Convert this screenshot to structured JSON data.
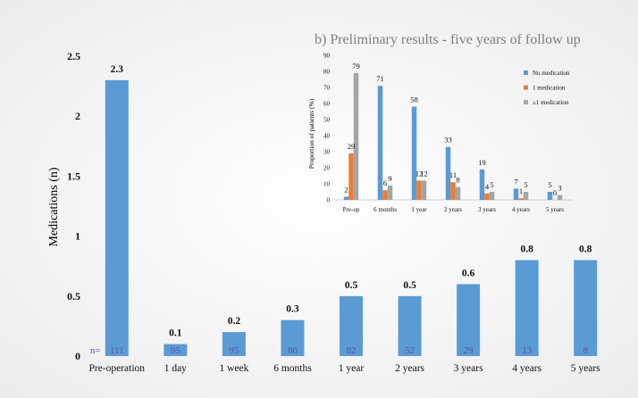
{
  "colors": {
    "background": "#f4f4f4",
    "bar_blue": "#5b9bd5",
    "bar_orange": "#ed7d31",
    "bar_gray": "#a5a5a5",
    "n_label": "#5a4fb0",
    "text": "#111111",
    "inset_title": "#7f7f7f"
  },
  "chart_data": [
    {
      "type": "bar",
      "title": "",
      "xlabel": "",
      "ylabel": "Medications (n)",
      "ylim": [
        0,
        2.5
      ],
      "yticks": [
        "0",
        "0.5",
        "1",
        "1.5",
        "2",
        "2.5"
      ],
      "ytick_values": [
        0,
        0.5,
        1,
        1.5,
        2,
        2.5
      ],
      "grid": false,
      "categories": [
        "Pre-operation",
        "1 day",
        "1 week",
        "6 months",
        "1 year",
        "2 years",
        "3 years",
        "4 years",
        "5 years"
      ],
      "values": [
        2.3,
        0.1,
        0.2,
        0.3,
        0.5,
        0.5,
        0.6,
        0.8,
        0.8
      ],
      "value_labels": [
        "2.3",
        "0.1",
        "0.2",
        "0.3",
        "0.5",
        "0.5",
        "0.6",
        "0.8",
        "0.8"
      ],
      "n_prefix": "n=",
      "n_values": [
        "111",
        "95",
        "95",
        "86",
        "82",
        "52",
        "29",
        "13",
        "8"
      ]
    },
    {
      "type": "bar",
      "title": "b) Preliminary results - five years of follow up",
      "xlabel": "",
      "ylabel": "Proportion of patients (%)",
      "ylim": [
        0,
        90
      ],
      "yticks": [
        "0",
        "10",
        "20",
        "30",
        "40",
        "50",
        "60",
        "70",
        "80",
        "90"
      ],
      "ytick_values": [
        0,
        10,
        20,
        30,
        40,
        50,
        60,
        70,
        80,
        90
      ],
      "grid": false,
      "legend": "right",
      "categories": [
        "Pre-op",
        "6 months",
        "1 year",
        "2 years",
        "3 years",
        "4 years",
        "5 years"
      ],
      "series": [
        {
          "name": "No medication",
          "values": [
            2,
            71,
            58,
            33,
            19,
            7,
            5
          ],
          "labels": [
            "2",
            "71",
            "58",
            "33",
            "19",
            "7",
            "5"
          ]
        },
        {
          "name": "1 medication",
          "values": [
            29,
            6,
            12,
            11,
            4,
            1,
            0
          ],
          "labels": [
            "29",
            "6",
            "12",
            "11",
            "4",
            "1",
            "0"
          ]
        },
        {
          "name": "≥1 medication",
          "values": [
            79,
            9,
            12,
            8,
            5,
            5,
            3
          ],
          "labels": [
            "79",
            "9",
            "12",
            "8",
            "5",
            "5",
            "3"
          ]
        }
      ]
    }
  ]
}
